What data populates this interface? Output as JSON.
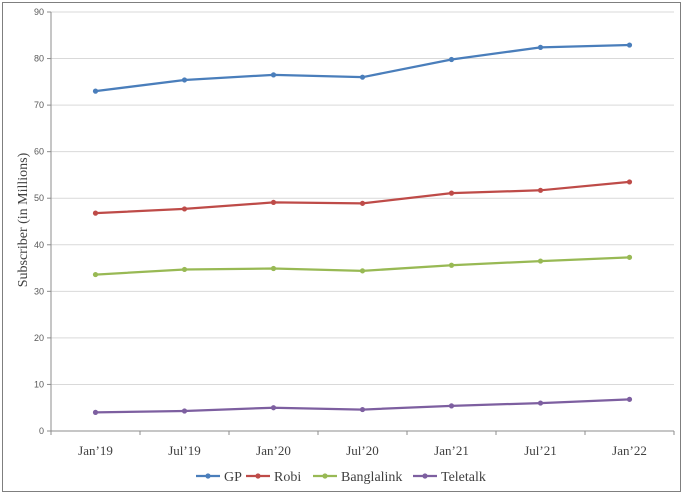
{
  "chart_data": {
    "type": "line",
    "title": "",
    "xlabel": "",
    "ylabel": "Subscriber (in Millions)",
    "categories": [
      "Jan’19",
      "Jul’19",
      "Jan’20",
      "Jul’20",
      "Jan’21",
      "Jul’21",
      "Jan’22"
    ],
    "ylim": [
      0,
      90
    ],
    "yticks": [
      0,
      10,
      20,
      30,
      40,
      50,
      60,
      70,
      80,
      90
    ],
    "grid": true,
    "legend_position": "bottom",
    "series": [
      {
        "name": "GP",
        "color": "#4a7ebb",
        "values": [
          73.0,
          75.4,
          76.5,
          76.0,
          79.8,
          82.4,
          82.9
        ]
      },
      {
        "name": "Robi",
        "color": "#be4b48",
        "values": [
          46.8,
          47.7,
          49.1,
          48.9,
          51.1,
          51.7,
          53.5
        ]
      },
      {
        "name": "Banglalink",
        "color": "#98b954",
        "values": [
          33.6,
          34.7,
          34.9,
          34.4,
          35.6,
          36.5,
          37.3
        ]
      },
      {
        "name": "Teletalk",
        "color": "#7d5fa0",
        "values": [
          4.0,
          4.3,
          5.0,
          4.6,
          5.4,
          6.0,
          6.8
        ]
      }
    ]
  }
}
